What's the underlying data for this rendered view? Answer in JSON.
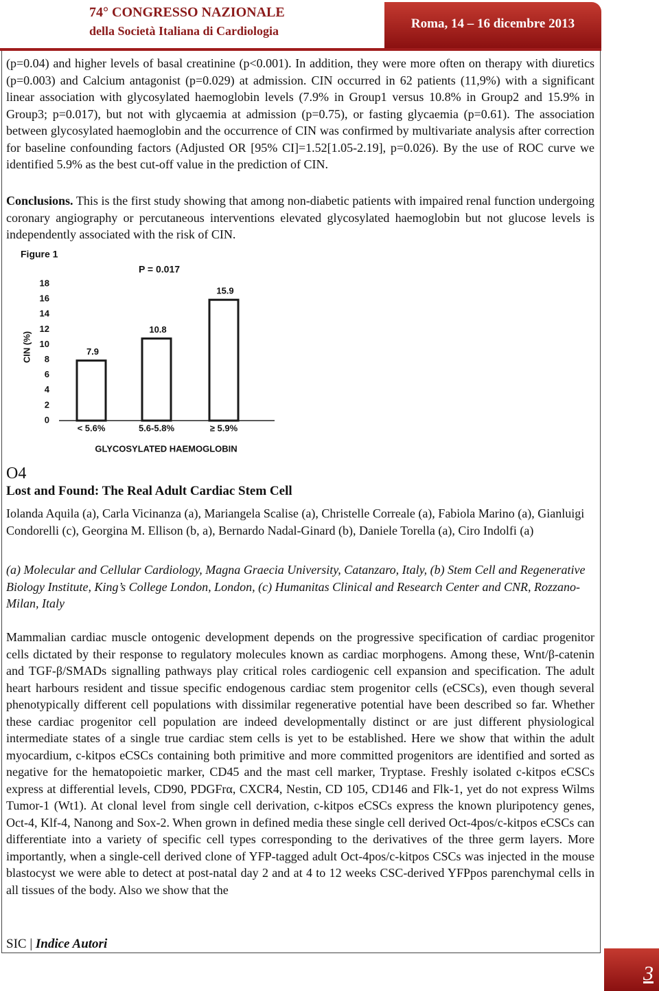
{
  "header": {
    "congress": "74° CONGRESSO NAZIONALE",
    "society": "della Società Italiana di Cardiologia",
    "dates": "Roma, 14 – 16 dicembre 2013"
  },
  "results": "(p=0.04) and higher levels of basal creatinine (p<0.001). In addition, they were more often on therapy with diuretics (p=0.003) and Calcium antagonist (p=0.029) at admission. CIN occurred in 62 patients (11,9%) with a significant linear association with glycosylated haemoglobin levels (7.9% in Group1 versus 10.8% in Group2 and 15.9% in Group3; p=0.017), but not with glycaemia at admission (p=0.75), or fasting glycaemia (p=0.61). The association between glycosylated haemoglobin and the occurrence of CIN was confirmed by multivariate analysis after correction for baseline confounding factors (Adjusted OR [95% CI]=1.52[1.05-2.19], p=0.026). By the use of ROC curve we identified 5.9% as the best cut-off value in the prediction of CIN.",
  "conclusions": {
    "label": "Conclusions.",
    "text": "This is the first study showing that among non-diabetic patients with impaired renal function undergoing coronary angiography or percutaneous interventions elevated glycosylated haemoglobin but not glucose levels is independently associated with the risk of CIN."
  },
  "chart_data": {
    "type": "bar",
    "figure_label": "Figure 1",
    "title": "P = 0.017",
    "ylabel": "CIN (%)",
    "xlabel": "GLYCOSYLATED HAEMOGLOBIN",
    "categories": [
      "< 5.6%",
      "5.6-5.8%",
      "≥ 5.9%"
    ],
    "values": [
      7.9,
      10.8,
      15.9
    ],
    "color": "#1a1a1a",
    "ylim": [
      0,
      18
    ],
    "yticks": [
      0,
      2,
      4,
      6,
      8,
      10,
      12,
      14,
      16,
      18
    ],
    "grid": false
  },
  "abstract": {
    "code": "O4",
    "title": "Lost and Found: The Real Adult Cardiac Stem Cell",
    "authors": "Iolanda Aquila (a), Carla Vicinanza (a), Mariangela Scalise (a), Christelle Correale (a), Fabiola Marino (a), Gianluigi Condorelli (c), Georgina M. Ellison (b, a), Bernardo Nadal-Ginard (b), Daniele Torella (a), Ciro Indolfi (a)",
    "affiliations": "(a) Molecular and Cellular Cardiology, Magna Graecia University, Catanzaro, Italy, (b) Stem Cell and Regenerative Biology Institute, King’s College London, London, (c) Humanitas Clinical and Research Center and CNR, Rozzano-Milan, Italy",
    "body": "Mammalian cardiac muscle ontogenic development depends on the progressive specification of cardiac progenitor cells dictated by their response to regulatory molecules known as cardiac morphogens. Among these, Wnt/β-catenin and TGF-β/SMADs signalling pathways play critical roles cardiogenic cell expansion and specification. The adult heart harbours resident and tissue specific endogenous cardiac stem progenitor cells (eCSCs), even though several phenotypically different cell populations with dissimilar regenerative potential have been described so far. Whether these cardiac progenitor cell population are indeed developmentally distinct or are just different physiological intermediate states of a single true cardiac stem cells is yet to be established. Here we show that within the adult myocardium, c-kitpos eCSCs containing both primitive and more committed progenitors are identified and sorted as negative for the hematopoietic marker, CD45 and the mast cell marker, Tryptase. Freshly isolated c-kitpos eCSCs express at differential levels, CD90, PDGFrα, CXCR4, Nestin, CD 105, CD146 and Flk-1, yet do not express Wilms Tumor-1 (Wt1). At clonal level from single cell derivation, c-kitpos eCSCs express the known pluripotency genes, Oct-4, Klf-4, Nanong and Sox-2. When grown in defined media these single cell derived Oct-4pos/c-kitpos eCSCs can differentiate into a variety of specific cell types corresponding to the derivatives of the three germ layers. More importantly, when a single-cell derived clone of YFP-tagged adult Oct-4pos/c-kitpos CSCs was injected in the mouse blastocyst we were able to detect at post-natal day 2 and at 4 to 12 weeks CSC-derived YFPpos parenchymal cells in all tissues of the body. Also we show that the"
  },
  "footer": {
    "society": "SIC |",
    "index": "Indice Autori",
    "page": "3"
  }
}
